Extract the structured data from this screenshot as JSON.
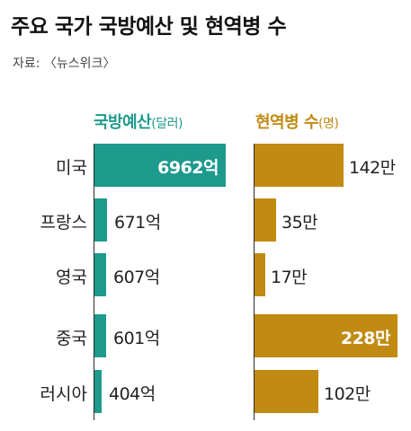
{
  "title": "주요 국가 국방예산 및 현역병 수",
  "source": "자료: 〈뉴스위크〉",
  "chart_data": {
    "type": "bar",
    "orientation": "horizontal",
    "categories": [
      "미국",
      "프랑스",
      "영국",
      "중국",
      "러시아"
    ],
    "series": [
      {
        "name": "국방예산(달러)",
        "label_main": "국방예산",
        "label_unit": "(달러)",
        "color": "#1e9a8d",
        "values": [
          6962,
          671,
          607,
          601,
          404
        ],
        "labels": [
          "6962억",
          "671억",
          "607억",
          "601억",
          "404억"
        ]
      },
      {
        "name": "현역병 수(명)",
        "label_main": "현역병 수",
        "label_unit": "(명)",
        "color": "#c18a12",
        "values": [
          142,
          35,
          17,
          228,
          102
        ],
        "labels": [
          "142만",
          "35만",
          "17만",
          "228만",
          "102만"
        ]
      }
    ]
  }
}
